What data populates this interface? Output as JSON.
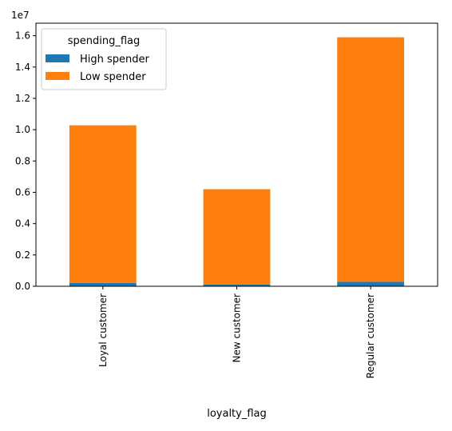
{
  "chart_data": {
    "type": "bar",
    "stacked": true,
    "categories": [
      "Loyal customer",
      "New customer",
      "Regular customer"
    ],
    "series": [
      {
        "name": "High spender",
        "values": [
          210000,
          120000,
          290000
        ],
        "color": "#1f77b4"
      },
      {
        "name": "Low spender",
        "values": [
          10070000,
          6080000,
          15610000
        ],
        "color": "#ff7f0e"
      }
    ],
    "xlabel": "loyalty_flag",
    "ylabel": "",
    "ylim": [
      0,
      16800000
    ],
    "yticks": [
      "0.0",
      "0.2",
      "0.4",
      "0.6",
      "0.8",
      "1.0",
      "1.2",
      "1.4",
      "1.6"
    ],
    "ytick_values": [
      0,
      2000000,
      4000000,
      6000000,
      8000000,
      10000000,
      12000000,
      14000000,
      16000000
    ],
    "offset_label": "1e7",
    "legend": {
      "title": "spending_flag",
      "placement": "top-left"
    },
    "grid": false
  }
}
